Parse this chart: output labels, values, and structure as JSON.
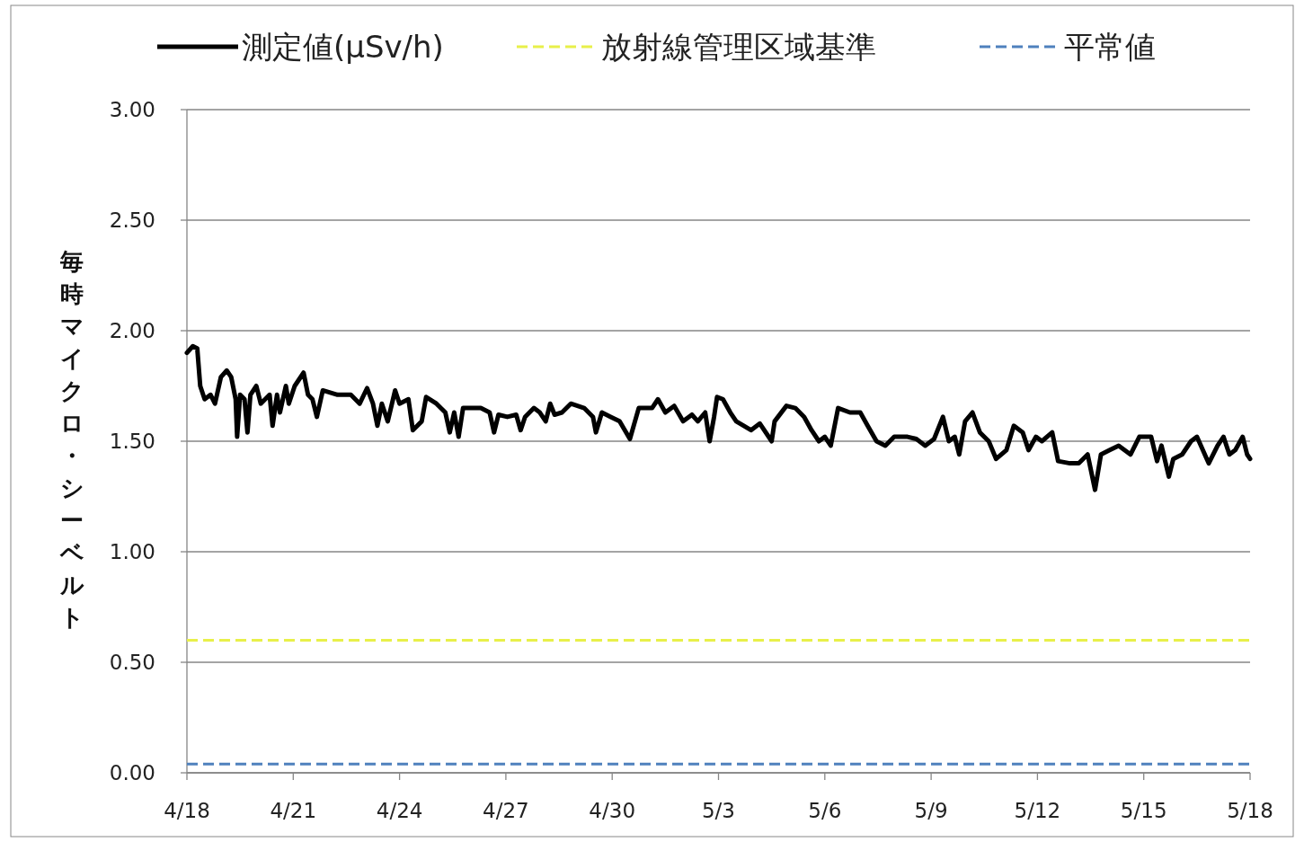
{
  "chart_data": {
    "type": "line",
    "ylabel": "毎時マイクロ・シーベルト",
    "xlim": [
      "--04-18",
      "--05-18"
    ],
    "xticks": [
      {
        "value": "--04-18",
        "label": "4/18"
      },
      {
        "value": "--04-21",
        "label": "4/21"
      },
      {
        "value": "--04-24",
        "label": "4/24"
      },
      {
        "value": "--04-27",
        "label": "4/27"
      },
      {
        "value": "--04-30",
        "label": "4/30"
      },
      {
        "value": "--05-03",
        "label": "5/3"
      },
      {
        "value": "--05-06",
        "label": "5/6"
      },
      {
        "value": "--05-09",
        "label": "5/9"
      },
      {
        "value": "--05-12",
        "label": "5/12"
      },
      {
        "value": "--05-15",
        "label": "5/15"
      },
      {
        "value": "--05-18",
        "label": "5/18"
      }
    ],
    "ylim": [
      0,
      3
    ],
    "yticks": [
      {
        "value": 0,
        "label": "0.00"
      },
      {
        "value": 0.5,
        "label": "0.50"
      },
      {
        "value": 1,
        "label": "1.00"
      },
      {
        "value": 1.5,
        "label": "1.50"
      },
      {
        "value": 2,
        "label": "2.00"
      },
      {
        "value": 2.5,
        "label": "2.50"
      },
      {
        "value": 3,
        "label": "3.00"
      }
    ],
    "grid": "y",
    "legend": "top",
    "series": [
      {
        "name": "測定値(µSv/h)",
        "color": "#000000",
        "line_style": "solid",
        "x": [
          "--04-18T00:00",
          "--04-18T04:00",
          "--04-18T07:00",
          "--04-18T09:00",
          "--04-18T12:00",
          "--04-18T16:00",
          "--04-18T19:00",
          "--04-18T23:00",
          "--04-19T03:00",
          "--04-19T06:00",
          "--04-19T09:00",
          "--04-19T10:00",
          "--04-19T12:00",
          "--04-19T15:00",
          "--04-19T17:00",
          "--04-19T19:00",
          "--04-19T23:00",
          "--04-20T02:00",
          "--04-20T08:00",
          "--04-20T10:00",
          "--04-20T13:00",
          "--04-20T15:00",
          "--04-20T19:00",
          "--04-20T21:00",
          "--04-21T01:00",
          "--04-21T07:00",
          "--04-21T10:00",
          "--04-21T13:00",
          "--04-21T16:00",
          "--04-21T20:00",
          "--04-22T06:00",
          "--04-22T15:00",
          "--04-22T21:00",
          "--04-23T02:00",
          "--04-23T06:00",
          "--04-23T09:00",
          "--04-23T12:00",
          "--04-23T16:00",
          "--04-23T21:00",
          "--04-24T00:00",
          "--04-24T06:00",
          "--04-24T09:00",
          "--04-24T15:00",
          "--04-24T18:00",
          "--04-25T01:00",
          "--04-25T07:00",
          "--04-25T10:00",
          "--04-25T13:00",
          "--04-25T16:00",
          "--04-25T19:00",
          "--04-26T01:00",
          "--04-26T07:00",
          "--04-26T13:00",
          "--04-26T16:00",
          "--04-26T19:00",
          "--04-27T01:00",
          "--04-27T07:00",
          "--04-27T10:00",
          "--04-27T13:00",
          "--04-27T19:00",
          "--04-27T23:00",
          "--04-28T03:00",
          "--04-28T06:00",
          "--04-28T09:00",
          "--04-28T14:00",
          "--04-28T20:00",
          "--04-29T05:00",
          "--04-29T11:00",
          "--04-29T13:00",
          "--04-29T17:00",
          "--04-29T23:00",
          "--04-30T05:00",
          "--04-30T12:00",
          "--04-30T18:00",
          "--05-01T03:00",
          "--05-01T07:00",
          "--05-01T12:00",
          "--05-01T18:00",
          "--05-02T00:00",
          "--05-02T06:00",
          "--05-02T10:00",
          "--05-02T15:00",
          "--05-02T18:00",
          "--05-02T21:00",
          "--05-02T23:00",
          "--05-03T03:00",
          "--05-03T08:00",
          "--05-03T12:00",
          "--05-03T22:00",
          "--05-04T04:00",
          "--05-04T12:00",
          "--05-04T14:00",
          "--05-04T22:00",
          "--05-05T04:00",
          "--05-05T10:00",
          "--05-05T15:00",
          "--05-05T20:00",
          "--05-06T00:00",
          "--05-06T04:00",
          "--05-06T09:00",
          "--05-06T17:00",
          "--05-07T00:00",
          "--05-07T05:00",
          "--05-07T11:00",
          "--05-07T17:00",
          "--05-07T23:00",
          "--05-08T08:00",
          "--05-08T14:00",
          "--05-08T20:00",
          "--05-09T02:00",
          "--05-09T08:00",
          "--05-09T12:00",
          "--05-09T16:00",
          "--05-09T19:00",
          "--05-09T23:00",
          "--05-10T04:00",
          "--05-10T09:00",
          "--05-10T15:00",
          "--05-10T20:00",
          "--05-11T03:00",
          "--05-11T08:00",
          "--05-11T14:00",
          "--05-11T18:00",
          "--05-11T23:00",
          "--05-12T03:00",
          "--05-12T10:00",
          "--05-12T14:00",
          "--05-12T22:00",
          "--05-13T04:00",
          "--05-13T10:00",
          "--05-13T15:00",
          "--05-13T19:00",
          "--05-14T01:00",
          "--05-14T07:00",
          "--05-14T15:00",
          "--05-14T21:00",
          "--05-15T05:00",
          "--05-15T09:00",
          "--05-15T12:00",
          "--05-15T17:00",
          "--05-15T20:00",
          "--05-16T02:00",
          "--05-16T08:00",
          "--05-16T12:00",
          "--05-16T16:00",
          "--05-16T20:00",
          "--05-17T02:00",
          "--05-17T06:00",
          "--05-17T10:00",
          "--05-17T14:00",
          "--05-17T19:00",
          "--05-17T22:00",
          "--05-18T00:00"
        ],
        "values": [
          1.9,
          1.93,
          1.92,
          1.75,
          1.69,
          1.71,
          1.67,
          1.79,
          1.82,
          1.79,
          1.69,
          1.52,
          1.71,
          1.69,
          1.54,
          1.71,
          1.75,
          1.67,
          1.71,
          1.57,
          1.71,
          1.63,
          1.75,
          1.67,
          1.75,
          1.81,
          1.71,
          1.69,
          1.61,
          1.73,
          1.71,
          1.71,
          1.67,
          1.74,
          1.67,
          1.57,
          1.67,
          1.59,
          1.73,
          1.67,
          1.69,
          1.55,
          1.59,
          1.7,
          1.67,
          1.63,
          1.54,
          1.63,
          1.52,
          1.65,
          1.65,
          1.65,
          1.63,
          1.54,
          1.62,
          1.61,
          1.62,
          1.55,
          1.61,
          1.65,
          1.63,
          1.59,
          1.67,
          1.62,
          1.63,
          1.67,
          1.65,
          1.61,
          1.54,
          1.63,
          1.61,
          1.59,
          1.51,
          1.65,
          1.65,
          1.69,
          1.63,
          1.66,
          1.59,
          1.62,
          1.59,
          1.63,
          1.5,
          1.61,
          1.7,
          1.69,
          1.63,
          1.59,
          1.55,
          1.58,
          1.5,
          1.59,
          1.66,
          1.65,
          1.61,
          1.55,
          1.5,
          1.52,
          1.48,
          1.65,
          1.63,
          1.63,
          1.57,
          1.5,
          1.48,
          1.52,
          1.52,
          1.51,
          1.48,
          1.51,
          1.61,
          1.5,
          1.52,
          1.44,
          1.59,
          1.63,
          1.54,
          1.5,
          1.42,
          1.46,
          1.57,
          1.54,
          1.46,
          1.52,
          1.5,
          1.54,
          1.41,
          1.4,
          1.4,
          1.44,
          1.28,
          1.44,
          1.46,
          1.48,
          1.44,
          1.52,
          1.52,
          1.41,
          1.48,
          1.34,
          1.42,
          1.44,
          1.5,
          1.52,
          1.46,
          1.4,
          1.48,
          1.52,
          1.44,
          1.46,
          1.52,
          1.44,
          1.42
        ]
      },
      {
        "name": "放射線管理区域基準",
        "color": "#e8f04a",
        "line_style": "dashed",
        "x": [
          "--04-18",
          "--05-18"
        ],
        "values": [
          0.6,
          0.6
        ]
      },
      {
        "name": "平常値",
        "color": "#4f81bd",
        "line_style": "dashed",
        "x": [
          "--04-18",
          "--05-18"
        ],
        "values": [
          0.04,
          0.04
        ]
      }
    ]
  }
}
